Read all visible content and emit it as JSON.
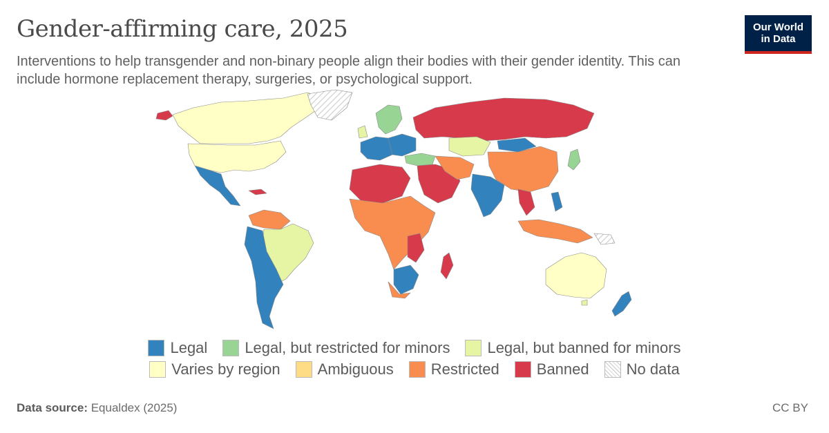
{
  "header": {
    "title": "Gender-affirming care, 2025",
    "subtitle": "Interventions to help transgender and non-binary people align their bodies with their gender identity. This can include hormone replacement therapy, surgeries, or psychological support."
  },
  "logo": {
    "line1": "Our World",
    "line2": "in Data"
  },
  "colors": {
    "legal": "#3182bd",
    "legal_restricted_minors": "#98d594",
    "legal_banned_minors": "#e6f5a4",
    "varies": "#ffffc6",
    "ambiguous": "#fedc86",
    "restricted": "#f98c4f",
    "banned": "#d73a4a",
    "nodata": "#e0e0e0",
    "logo_bg": "#002147",
    "logo_accent": "#ce261e"
  },
  "legend": {
    "row1": [
      {
        "label": "Legal",
        "color": "#3182bd"
      },
      {
        "label": "Legal, but restricted for minors",
        "color": "#98d594"
      },
      {
        "label": "Legal, but banned for minors",
        "color": "#e6f5a4"
      }
    ],
    "row2": [
      {
        "label": "Varies by region",
        "color": "#ffffc6"
      },
      {
        "label": "Ambiguous",
        "color": "#fedc86"
      },
      {
        "label": "Restricted",
        "color": "#f98c4f"
      },
      {
        "label": "Banned",
        "color": "#d73a4a"
      },
      {
        "label": "No data",
        "color": "hatched"
      }
    ]
  },
  "footer": {
    "source_label": "Data source:",
    "source_value": "Equaldex (2025)",
    "license": "CC BY"
  }
}
